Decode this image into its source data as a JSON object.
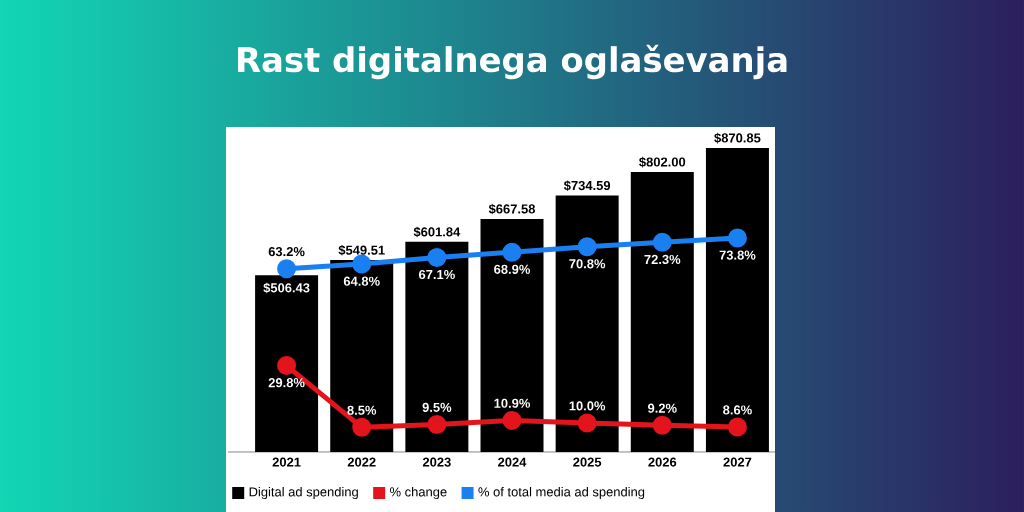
{
  "chart_data": {
    "type": "bar",
    "title": "Rast digitalnega oglaševanja",
    "categories": [
      "2021",
      "2022",
      "2023",
      "2024",
      "2025",
      "2026",
      "2027"
    ],
    "series": [
      {
        "name": "Digital ad spending",
        "color": "#000000",
        "values": [
          506.43,
          549.51,
          601.84,
          667.58,
          734.59,
          802.0,
          870.85
        ],
        "value_labels": [
          "$506.43",
          "$549.51",
          "$601.84",
          "$667.58",
          "$734.59",
          "$802.00",
          "$870.85"
        ]
      },
      {
        "name": "% change",
        "type": "line",
        "axis": "y2",
        "color": "#e3141b",
        "values": [
          29.8,
          8.5,
          9.5,
          10.9,
          10.0,
          9.2,
          8.6
        ],
        "value_labels": [
          "29.8%",
          "8.5%",
          "9.5%",
          "10.9%",
          "10.0%",
          "9.2%",
          "8.6%"
        ]
      },
      {
        "name": "% of total media ad spending",
        "type": "line",
        "axis": "y2",
        "color": "#1a7ff0",
        "values": [
          63.2,
          64.8,
          67.1,
          68.9,
          70.8,
          72.3,
          73.8
        ],
        "value_labels": [
          "63.2%",
          "64.8%",
          "67.1%",
          "68.9%",
          "70.8%",
          "72.3%",
          "73.8%"
        ]
      }
    ],
    "marker": "circle",
    "legend": "bottom",
    "tick_labels": "x"
  }
}
